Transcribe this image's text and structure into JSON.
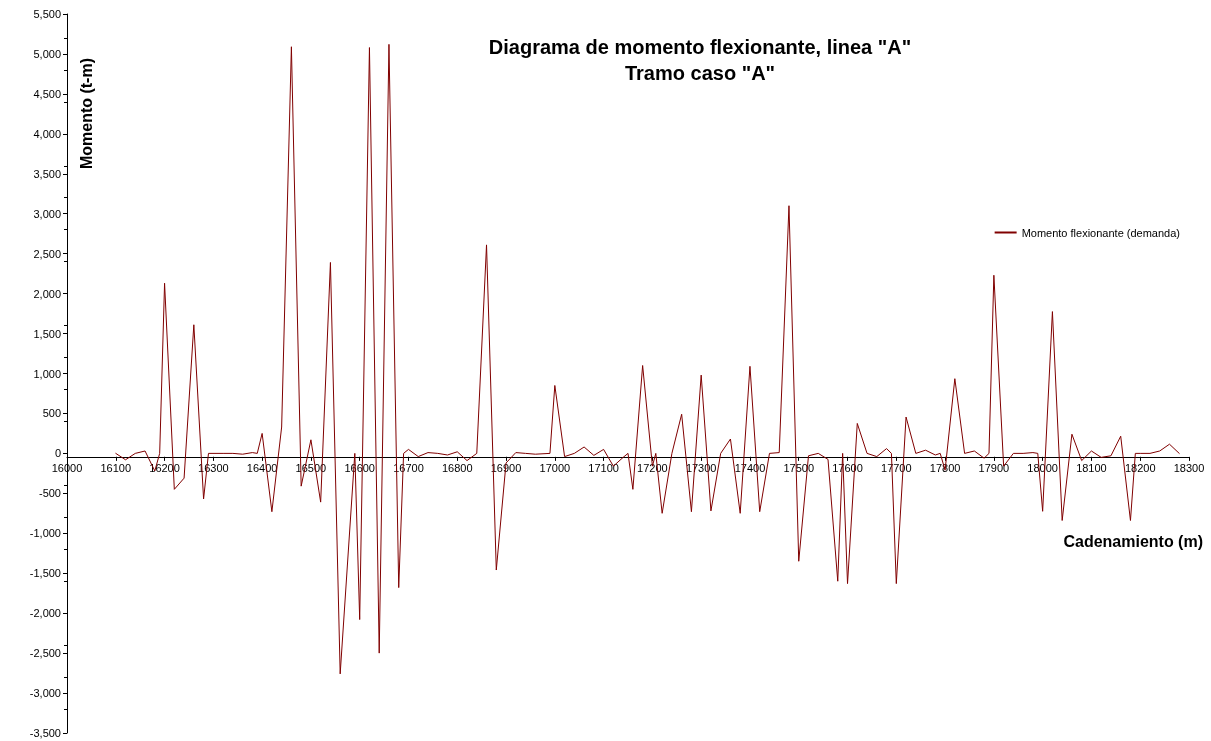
{
  "chart_data": {
    "type": "line",
    "title": "Diagrama de momento flexionante, linea \"A\"",
    "subtitle": "Tramo caso \"A\"",
    "xlabel": "Cadenamiento (m)",
    "ylabel": "Momento (t-m)",
    "x": [
      16100,
      16120,
      16140,
      16160,
      16180,
      16190,
      16200,
      16220,
      16240,
      16260,
      16280,
      16290,
      16320,
      16340,
      16360,
      16380,
      16390,
      16400,
      16420,
      16440,
      16460,
      16480,
      16500,
      16520,
      16540,
      16560,
      16590,
      16600,
      16620,
      16640,
      16660,
      16680,
      16690,
      16700,
      16720,
      16740,
      16760,
      16780,
      16800,
      16820,
      16840,
      16860,
      16880,
      16900,
      16920,
      16940,
      16960,
      16990,
      17000,
      17020,
      17040,
      17060,
      17080,
      17100,
      17120,
      17140,
      17150,
      17160,
      17180,
      17200,
      17207,
      17220,
      17240,
      17260,
      17280,
      17300,
      17320,
      17340,
      17360,
      17380,
      17400,
      17420,
      17440,
      17460,
      17480,
      17500,
      17520,
      17540,
      17560,
      17580,
      17590,
      17600,
      17620,
      17640,
      17660,
      17680,
      17690,
      17700,
      17720,
      17740,
      17760,
      17780,
      17790,
      17800,
      17820,
      17840,
      17860,
      17880,
      17890,
      17900,
      17920,
      17940,
      17960,
      17980,
      17990,
      18000,
      18020,
      18040,
      18060,
      18080,
      18100,
      18120,
      18140,
      18160,
      18180,
      18190,
      18200,
      18220,
      18240,
      18260,
      18280
    ],
    "series": [
      {
        "name": "Momento flexionante (demanda)",
        "color": "#800000",
        "values": [
          0,
          -80,
          0,
          30,
          -220,
          0,
          2130,
          -450,
          -310,
          1610,
          -570,
          0,
          0,
          0,
          -10,
          10,
          0,
          250,
          -730,
          330,
          5090,
          -410,
          170,
          -610,
          2390,
          -2760,
          0,
          -2080,
          5080,
          -2500,
          5120,
          -1680,
          0,
          50,
          -40,
          10,
          0,
          -20,
          20,
          -90,
          0,
          2610,
          -1460,
          -120,
          10,
          0,
          -10,
          0,
          850,
          -40,
          0,
          80,
          -25,
          50,
          -160,
          -50,
          0,
          -450,
          1100,
          -160,
          0,
          -750,
          0,
          490,
          -730,
          980,
          -720,
          0,
          180,
          -750,
          1090,
          -730,
          0,
          10,
          3100,
          -1350,
          -30,
          0,
          -75,
          -1600,
          0,
          -1630,
          375,
          0,
          -40,
          60,
          0,
          -1630,
          455,
          0,
          40,
          -20,
          0,
          -210,
          935,
          0,
          30,
          -60,
          0,
          2230,
          -160,
          0,
          0,
          10,
          0,
          -725,
          1775,
          -840,
          240,
          -90,
          30,
          -50,
          -30,
          215,
          -840,
          0,
          0,
          0,
          30,
          115,
          0
        ]
      }
    ],
    "xlim": [
      16000,
      18300
    ],
    "xticks": [
      16000,
      16100,
      16200,
      16300,
      16400,
      16500,
      16600,
      16700,
      16800,
      16900,
      17000,
      17100,
      17200,
      17300,
      17400,
      17500,
      17600,
      17700,
      17800,
      17900,
      18000,
      18100,
      18200,
      18300
    ],
    "ylim": [
      -3500,
      5500
    ],
    "yticks": [
      {
        "value": -3500,
        "label": "-3,500"
      },
      {
        "value": -3000,
        "label": "-3,000"
      },
      {
        "value": -2500,
        "label": "-2,500"
      },
      {
        "value": -2000,
        "label": "-2,000"
      },
      {
        "value": -1500,
        "label": "-1,500"
      },
      {
        "value": -1000,
        "label": "-1,000"
      },
      -500,
      0,
      500,
      {
        "value": 1000,
        "label": "1,000"
      },
      {
        "value": 1500,
        "label": "1,500"
      },
      {
        "value": 2000,
        "label": "2,000"
      },
      {
        "value": 2500,
        "label": "2,500"
      },
      {
        "value": 3000,
        "label": "3,000"
      },
      {
        "value": 3500,
        "label": "3,500"
      },
      {
        "value": 4000,
        "label": "4,000"
      },
      {
        "value": 4500,
        "label": "4,500"
      },
      {
        "value": 5000,
        "label": "5,000"
      },
      {
        "value": 5500,
        "label": "5,500"
      }
    ],
    "grid": false,
    "legend": "right",
    "marker": "none",
    "line_style": "solid"
  }
}
